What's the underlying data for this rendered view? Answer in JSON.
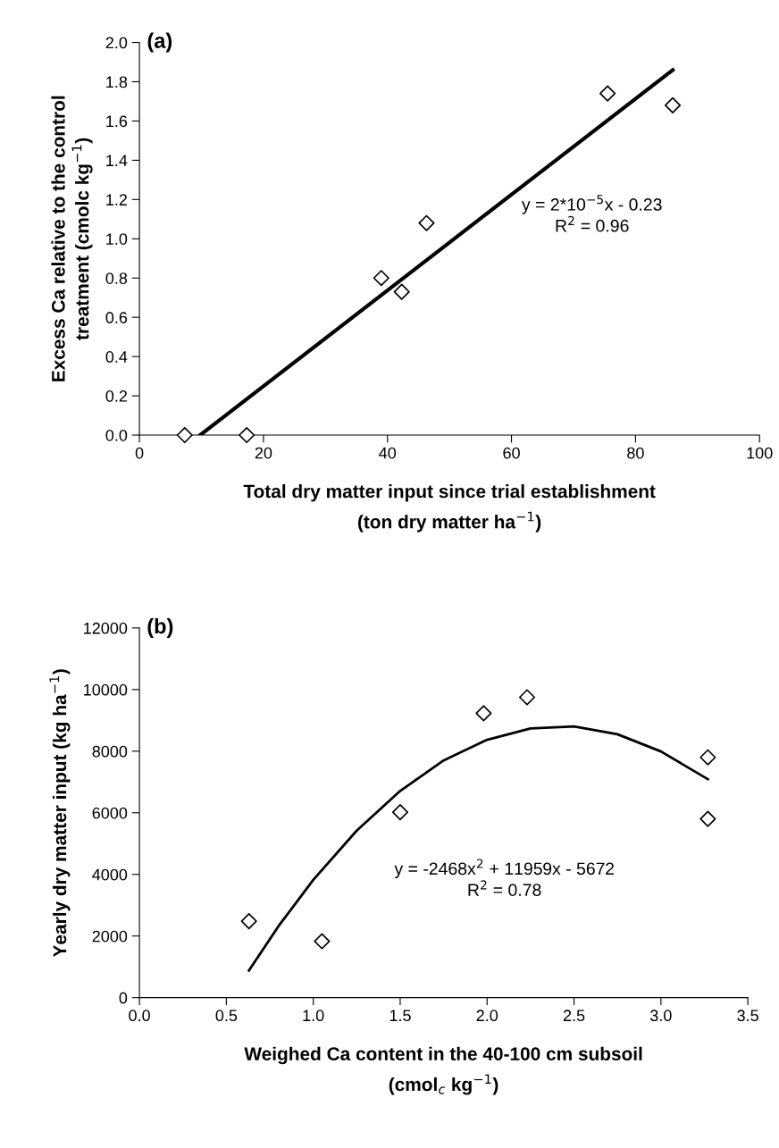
{
  "chart_data": [
    {
      "type": "scatter",
      "title": "(a)",
      "xlabel": "Total dry matter input since trial establishment\n(ton dry matter ha$^{−1}$)",
      "ylabel": "Excess Ca relative to the control\ntreatment (cmolc kg$^{−1}$)",
      "xlim": [
        0,
        100
      ],
      "xticks": [
        0,
        20,
        40,
        60,
        80,
        100
      ],
      "ylim": [
        0,
        2.0
      ],
      "yticks": [
        {
          "value": 0,
          "label": "0.0"
        },
        0.2,
        0.4,
        0.6,
        0.8,
        {
          "value": 1,
          "label": "1.0"
        },
        1.2,
        1.4,
        1.6,
        1.8,
        {
          "value": 2,
          "label": "2.0"
        }
      ],
      "grid": false,
      "legend": false,
      "series": [
        {
          "marker": "diamond",
          "color": "#000000",
          "x": [
            7.3,
            17.3,
            39,
            42.3,
            46.3,
            75.5,
            86
          ],
          "values": [
            0,
            0,
            0.8,
            0.73,
            1.08,
            1.74,
            1.68
          ]
        },
        {
          "type": "line",
          "color": "#000000",
          "x": [
            9.8,
            86
          ],
          "values": [
            0,
            1.86
          ]
        }
      ],
      "annotations": [
        "y = 2*10$^{−5}$x - 0.23\nR$^{2}$ = 0.96"
      ]
    },
    {
      "type": "scatter",
      "title": "(b)",
      "xlabel": "Weighed Ca content in the 40-100 cm subsoil\n(cmol$_{c}$ kg$^{−1}$)",
      "ylabel": "Yearly dry matter input (kg ha$^{−1}$)",
      "xlim": [
        0,
        3.5
      ],
      "xticks": [
        {
          "value": 0,
          "label": "0.0"
        },
        0.5,
        {
          "value": 1,
          "label": "1.0"
        },
        1.5,
        {
          "value": 2,
          "label": "2.0"
        },
        2.5,
        {
          "value": 3,
          "label": "3.0"
        },
        3.5
      ],
      "ylim": [
        0,
        12000
      ],
      "yticks": [
        0,
        2000,
        4000,
        6000,
        8000,
        10000,
        12000
      ],
      "grid": false,
      "legend": false,
      "series": [
        {
          "marker": "diamond",
          "color": "#000000",
          "x": [
            0.63,
            1.05,
            1.5,
            1.98,
            2.23,
            3.27,
            3.27
          ],
          "values": [
            2480,
            1830,
            6020,
            9230,
            9750,
            7800,
            5800
          ]
        },
        {
          "type": "line",
          "color": "#000000",
          "x": [
            0.63,
            0.8,
            1.0,
            1.25,
            1.5,
            1.75,
            2.0,
            2.25,
            2.5,
            2.75,
            3.0,
            3.27
          ],
          "values": [
            880,
            2320,
            3820,
            5420,
            6710,
            7700,
            8370,
            8740,
            8800,
            8550,
            7990,
            7090
          ]
        }
      ],
      "annotations": [
        "y = -2468x$^{2}$ + 11959x - 5672\nR$^{2}$ = 0.78"
      ]
    }
  ]
}
